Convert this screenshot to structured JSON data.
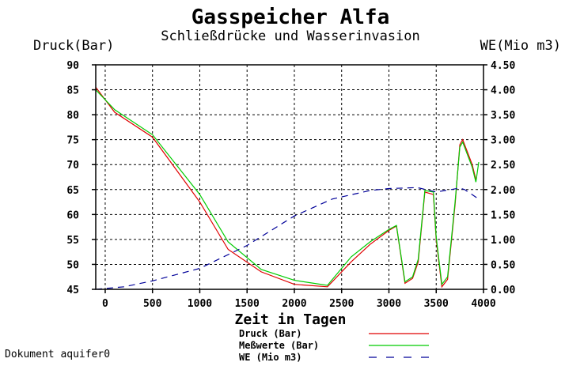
{
  "footer_text": "Dokument aquifer0",
  "chart_data": {
    "type": "line",
    "title": "Gasspeicher Alfa",
    "subtitle": "Schließdrücke und Wasserinvasion",
    "xlabel": "Zeit in Tagen",
    "ylabel_left": "Druck(Bar)",
    "ylabel_right": "WE(Mio m3)",
    "xlim": [
      -100,
      4000
    ],
    "ylim_left": [
      45,
      90
    ],
    "ylim_right": [
      0,
      4.5
    ],
    "x_ticks": [
      "0",
      "500",
      "1000",
      "1500",
      "2000",
      "2500",
      "3000",
      "3500",
      "4000"
    ],
    "y_left_ticks": [
      "45",
      "50",
      "55",
      "60",
      "65",
      "70",
      "75",
      "80",
      "85",
      "90"
    ],
    "y_right_ticks": [
      "0.00",
      "0.50",
      "1.00",
      "1.50",
      "2.00",
      "2.50",
      "3.00",
      "3.50",
      "4.00",
      "4.50"
    ],
    "grid": true,
    "legend_position": "bottom-right",
    "series": [
      {
        "name": "Druck (Bar)",
        "axis": "left",
        "color": "#e00000",
        "dash": "solid",
        "points": [
          [
            -100,
            85.5
          ],
          [
            100,
            80.5
          ],
          [
            500,
            75.5
          ],
          [
            1000,
            62.5
          ],
          [
            1300,
            53
          ],
          [
            1650,
            48.5
          ],
          [
            2000,
            46
          ],
          [
            2350,
            45.5
          ],
          [
            2600,
            50.5
          ],
          [
            2800,
            54
          ],
          [
            3000,
            56.8
          ],
          [
            3080,
            57.7
          ],
          [
            3170,
            46.2
          ],
          [
            3250,
            47.2
          ],
          [
            3310,
            50.5
          ],
          [
            3380,
            64.5
          ],
          [
            3470,
            64
          ],
          [
            3500,
            55
          ],
          [
            3560,
            45.5
          ],
          [
            3620,
            47
          ],
          [
            3700,
            62
          ],
          [
            3750,
            74
          ],
          [
            3780,
            75
          ],
          [
            3830,
            72.5
          ],
          [
            3880,
            70
          ],
          [
            3920,
            67
          ]
        ]
      },
      {
        "name": "Meßwerte (Bar)",
        "axis": "left",
        "color": "#00cc00",
        "dash": "solid",
        "points": [
          [
            -100,
            85
          ],
          [
            100,
            81
          ],
          [
            500,
            76
          ],
          [
            1000,
            64
          ],
          [
            1300,
            54.5
          ],
          [
            1650,
            49
          ],
          [
            2000,
            46.8
          ],
          [
            2350,
            45.8
          ],
          [
            2600,
            51.5
          ],
          [
            2800,
            54.5
          ],
          [
            3000,
            57
          ],
          [
            3080,
            57.8
          ],
          [
            3170,
            46.5
          ],
          [
            3250,
            47.5
          ],
          [
            3310,
            51
          ],
          [
            3380,
            64.8
          ],
          [
            3470,
            64.5
          ],
          [
            3500,
            55.5
          ],
          [
            3560,
            46
          ],
          [
            3620,
            47.5
          ],
          [
            3700,
            62.5
          ],
          [
            3750,
            73.5
          ],
          [
            3780,
            74.5
          ],
          [
            3830,
            72
          ],
          [
            3880,
            69.5
          ],
          [
            3920,
            66.5
          ],
          [
            3950,
            70.5
          ]
        ]
      },
      {
        "name": "WE (Mio m3)",
        "axis": "right",
        "color": "#000099",
        "dash": "dashed",
        "points": [
          [
            -100,
            0
          ],
          [
            200,
            0.05
          ],
          [
            500,
            0.17
          ],
          [
            1000,
            0.42
          ],
          [
            1500,
            0.88
          ],
          [
            2000,
            1.47
          ],
          [
            2400,
            1.81
          ],
          [
            2800,
            1.98
          ],
          [
            3000,
            2.02
          ],
          [
            3300,
            2.04
          ],
          [
            3500,
            1.95
          ],
          [
            3750,
            2.03
          ],
          [
            3800,
            2.0
          ],
          [
            3950,
            1.81
          ]
        ]
      }
    ]
  }
}
